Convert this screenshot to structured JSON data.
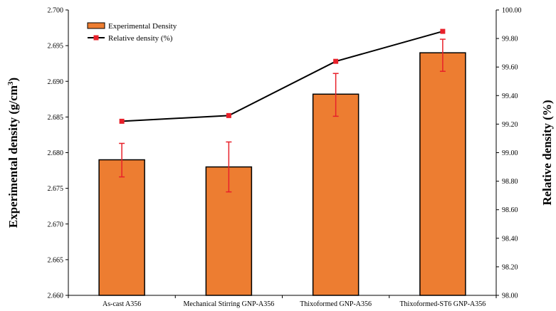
{
  "chart_data": {
    "type": "bar",
    "categories": [
      "As-cast A356",
      "Mechanical Stirring GNP-A356",
      "Thixoformed GNP-A356",
      "Thixoformed-ST6 GNP-A356"
    ],
    "series": [
      {
        "name": "Experimental Density",
        "type": "bar",
        "axis": "left",
        "values": [
          2.679,
          2.678,
          2.6882,
          2.694
        ],
        "error_low": [
          2.6766,
          2.6745,
          2.6851,
          2.6914
        ],
        "error_high": [
          2.6813,
          2.6815,
          2.6911,
          2.6959
        ]
      },
      {
        "name": "Relative density (%)",
        "type": "line",
        "axis": "right",
        "values": [
          99.22,
          99.26,
          99.64,
          99.85
        ]
      }
    ],
    "ylabel_left": "Experimental density (g/cm3)",
    "ylabel_right": "Relative density (%)",
    "ylim_left": [
      2.66,
      2.7
    ],
    "ylim_right": [
      98.0,
      100.0
    ],
    "yticks_left": [
      "2.660",
      "2.665",
      "2.670",
      "2.675",
      "2.680",
      "2.685",
      "2.690",
      "2.695",
      "2.700"
    ],
    "yticks_right": [
      "98.00",
      "98.20",
      "98.40",
      "98.60",
      "98.80",
      "99.00",
      "99.20",
      "99.40",
      "99.60",
      "99.80",
      "100.00"
    ],
    "grid": false,
    "legend_position": "top-left",
    "colors": {
      "bar_fill": "#ED7D31",
      "bar_stroke": "#000000",
      "error_bar": "#E8202A",
      "line": "#000000",
      "marker": "#E8202A"
    }
  }
}
